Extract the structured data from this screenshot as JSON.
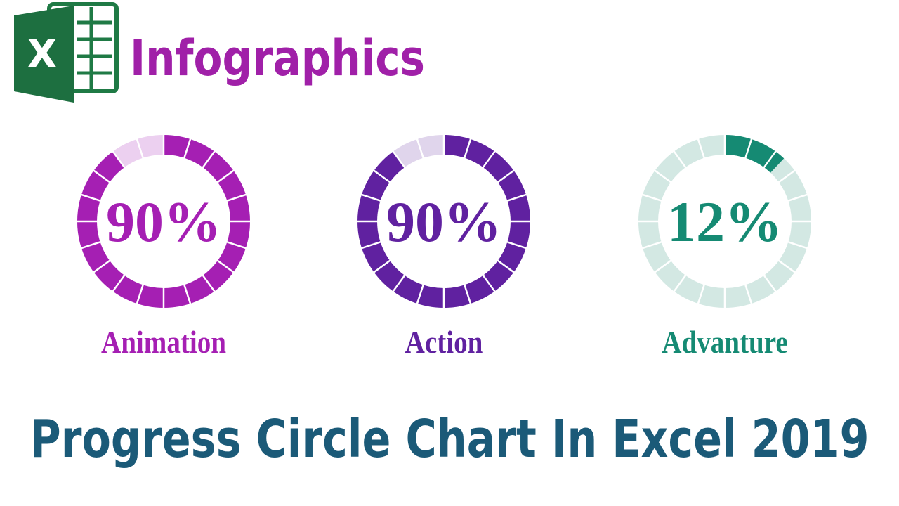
{
  "header": {
    "logo_letter": "X",
    "title": "Infographics"
  },
  "chart_data": [
    {
      "type": "progress-circle",
      "category": "Animation",
      "values": [
        90
      ],
      "value_labels": [
        "90%"
      ],
      "color": "#a51fb3",
      "track_color": "#ecd0f0",
      "max": 100,
      "segments": 20
    },
    {
      "type": "progress-circle",
      "category": "Action",
      "values": [
        90
      ],
      "value_labels": [
        "90%"
      ],
      "color": "#6021a0",
      "track_color": "#e0d5ec",
      "max": 100,
      "segments": 20
    },
    {
      "type": "progress-circle",
      "category": "Advanture",
      "values": [
        12
      ],
      "value_labels": [
        "12%"
      ],
      "color": "#158a73",
      "track_color": "#d3e8e3",
      "max": 100,
      "segments": 20
    }
  ],
  "footer": {
    "title": "Progress Circle Chart In Excel 2019"
  }
}
